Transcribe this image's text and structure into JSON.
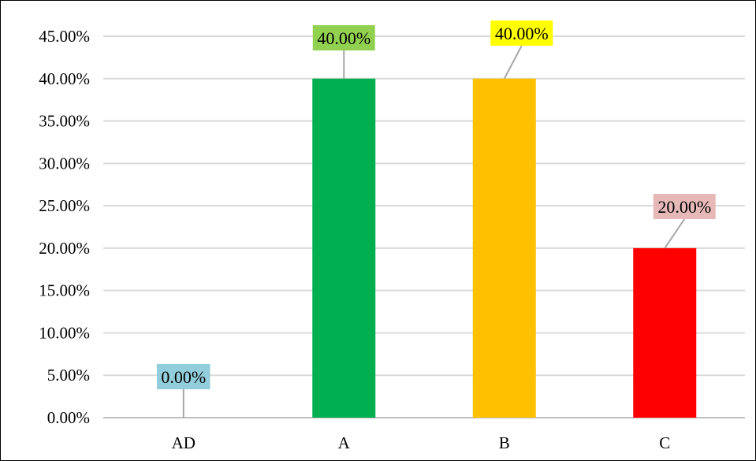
{
  "chart_data": {
    "type": "bar",
    "categories": [
      "AD",
      "A",
      "B",
      "C"
    ],
    "values": [
      0.0,
      40.0,
      40.0,
      20.0
    ],
    "value_format": "percent",
    "bar_colors": [
      "#00B050",
      "#00B050",
      "#FFC000",
      "#FF0000"
    ],
    "data_labels": [
      "0.00%",
      "40.00%",
      "40.00%",
      "20.00%"
    ],
    "data_label_backgrounds": [
      "#92CDDC",
      "#92D050",
      "#FFFF00",
      "#E6B9B8"
    ],
    "title": "",
    "xlabel": "",
    "ylabel": "",
    "ylim": [
      0,
      45
    ],
    "y_ticks": [
      "0.00%",
      "5.00%",
      "10.00%",
      "15.00%",
      "20.00%",
      "25.00%",
      "30.00%",
      "35.00%",
      "40.00%",
      "45.00%"
    ],
    "y_tick_values": [
      0,
      5,
      10,
      15,
      20,
      25,
      30,
      35,
      40,
      45
    ],
    "grid": true,
    "grid_color": "#D9D9D9",
    "leader_line_color": "#A6A6A6",
    "legend": "none"
  }
}
